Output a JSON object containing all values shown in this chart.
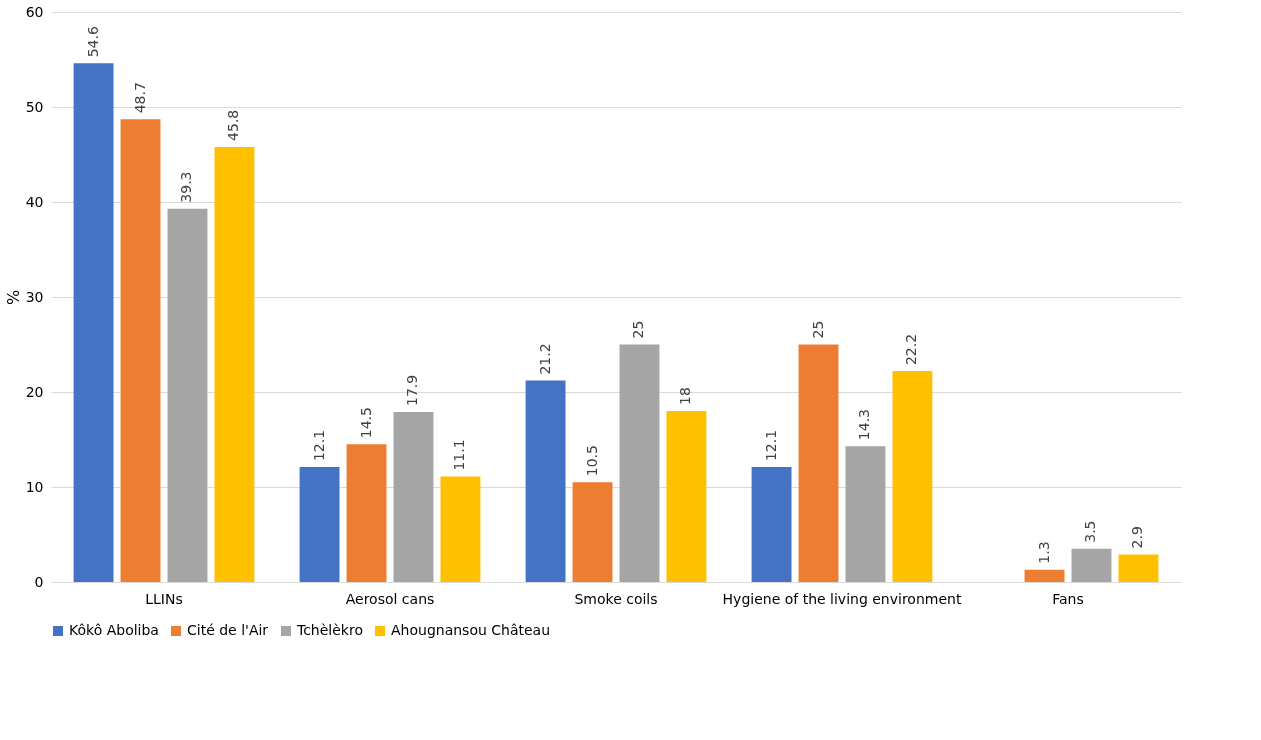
{
  "chart_data": {
    "type": "bar",
    "ylabel": "%",
    "categories": [
      "LLINs",
      "Aerosol cans",
      "Smoke coils",
      "Hygiene of the living environment",
      "Fans"
    ],
    "series": [
      {
        "name": "Kôkô Aboliba",
        "color": "#4472c4",
        "values": [
          54.6,
          12.1,
          21.2,
          12.1,
          null
        ]
      },
      {
        "name": "Cité de l'Air",
        "color": "#ed7d31",
        "values": [
          48.7,
          14.5,
          10.5,
          25,
          1.3
        ]
      },
      {
        "name": "Tchèlèkro",
        "color": "#a5a5a5",
        "values": [
          39.3,
          17.9,
          25,
          14.3,
          3.5
        ]
      },
      {
        "name": "Ahougnansou Château",
        "color": "#ffc000",
        "values": [
          45.8,
          11.1,
          18,
          22.2,
          2.9
        ]
      }
    ],
    "ylim": [
      0,
      60
    ],
    "yticks": [
      0,
      10,
      20,
      30,
      40,
      50,
      60
    ],
    "grid": "y",
    "legend": "bottom",
    "data_labels": true
  }
}
